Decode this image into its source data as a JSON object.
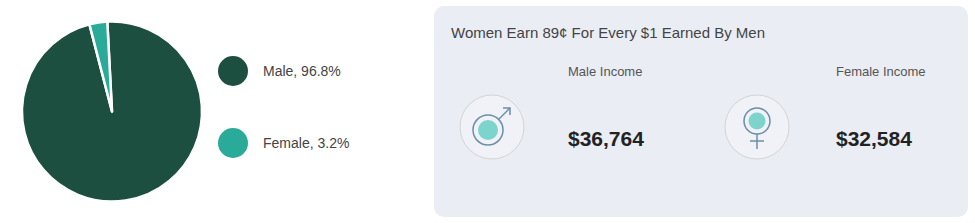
{
  "chart_data": {
    "type": "pie",
    "title": "Women Earn 89¢ For Every $1 Earned By Men",
    "categories": [
      "Male, 96.8%",
      "Female, 3.2%"
    ],
    "values": [
      96.8,
      3.2
    ],
    "colors": [
      "#1c4f3f",
      "#2aab99"
    ],
    "legend": "right",
    "annotations": [
      "Male Income",
      "$36,764",
      "Female Income",
      "$32,584"
    ]
  }
}
